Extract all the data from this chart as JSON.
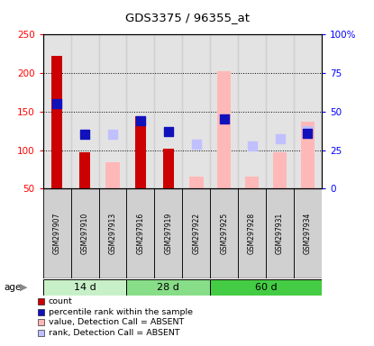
{
  "title": "GDS3375 / 96355_at",
  "samples": [
    "GSM297907",
    "GSM297910",
    "GSM297913",
    "GSM297916",
    "GSM297919",
    "GSM297922",
    "GSM297925",
    "GSM297928",
    "GSM297931",
    "GSM297934"
  ],
  "age_groups": [
    {
      "label": "14 d",
      "start": 0,
      "end": 3,
      "color": "#c8f0c8"
    },
    {
      "label": "28 d",
      "start": 3,
      "end": 6,
      "color": "#88dd88"
    },
    {
      "label": "60 d",
      "start": 6,
      "end": 10,
      "color": "#44cc44"
    }
  ],
  "count_values": [
    222,
    97,
    null,
    144,
    102,
    null,
    null,
    null,
    null,
    null
  ],
  "percentile_values": [
    160,
    120,
    null,
    138,
    124,
    null,
    140,
    null,
    null,
    122
  ],
  "absent_value_values": [
    null,
    null,
    84,
    null,
    null,
    65,
    202,
    65,
    97,
    137
  ],
  "absent_rank_values": [
    null,
    null,
    120,
    null,
    null,
    108,
    null,
    105,
    115,
    125
  ],
  "ylim_left": [
    50,
    250
  ],
  "ylim_right": [
    0,
    100
  ],
  "yticks_left": [
    50,
    100,
    150,
    200,
    250
  ],
  "yticks_right": [
    0,
    25,
    50,
    75,
    100
  ],
  "ytick_labels_left": [
    "50",
    "100",
    "150",
    "200",
    "250"
  ],
  "ytick_labels_right": [
    "0",
    "25",
    "50",
    "75",
    "100%"
  ],
  "count_color": "#cc0000",
  "percentile_color": "#1111bb",
  "absent_value_color": "#ffb8b8",
  "absent_rank_color": "#c0c0ff",
  "bar_bottom": 50,
  "grid_lines": [
    100,
    150,
    200
  ],
  "count_bar_width": 0.38,
  "absent_bar_width": 0.5,
  "marker_size": 55,
  "legend_items": [
    {
      "color": "#cc0000",
      "label": "count"
    },
    {
      "color": "#1111bb",
      "label": "percentile rank within the sample"
    },
    {
      "color": "#ffb8b8",
      "label": "value, Detection Call = ABSENT"
    },
    {
      "color": "#c0c0ff",
      "label": "rank, Detection Call = ABSENT"
    }
  ]
}
